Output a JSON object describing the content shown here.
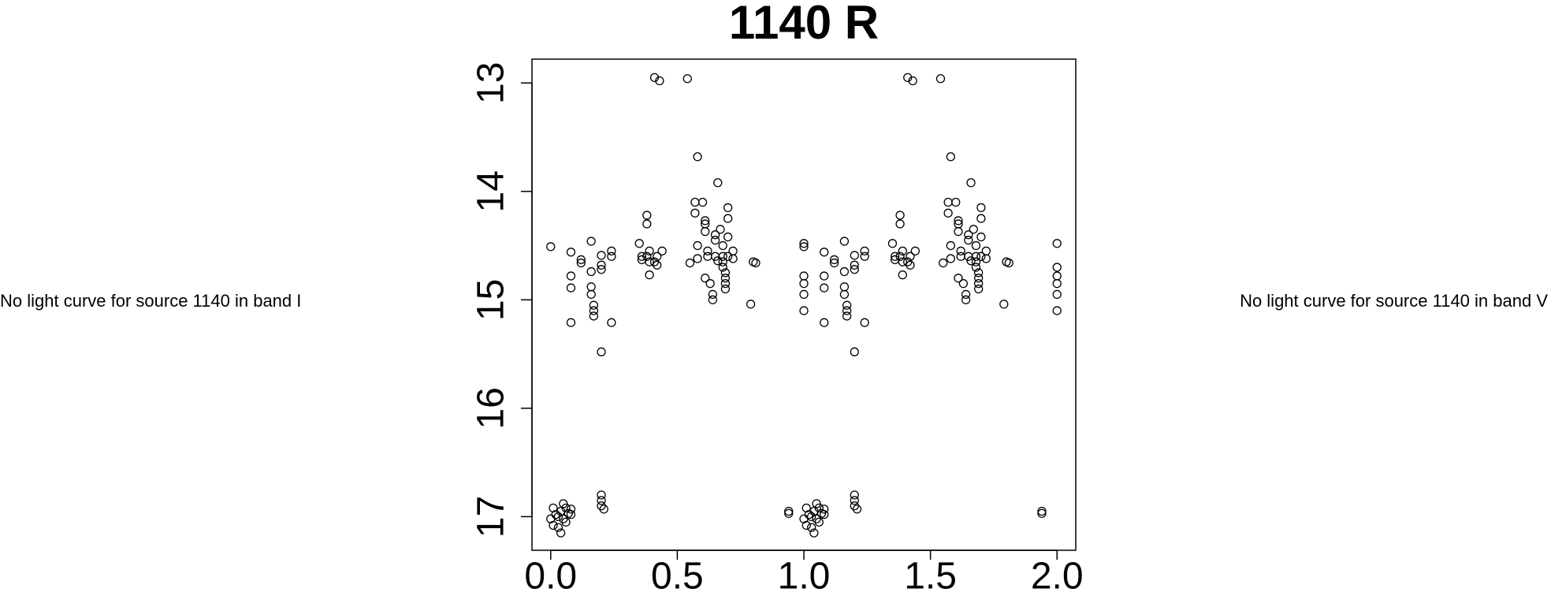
{
  "left_note": "No light curve for source 1140 in band I",
  "right_note": "No light curve for source 1140 in band V",
  "chart_data": {
    "type": "scatter",
    "title": "1140 R",
    "color": "#000000",
    "marker": "open-circle",
    "xlim": [
      -0.074,
      2.074
    ],
    "ylim": [
      12.78,
      17.31
    ],
    "y_reversed": true,
    "xticks": [
      {
        "value": 0,
        "label": "0.0"
      },
      0.5,
      {
        "value": 1,
        "label": "1.0"
      },
      1.5,
      {
        "value": 2,
        "label": "2.0"
      }
    ],
    "yticks": [
      13,
      14,
      15,
      16,
      17
    ],
    "x": [
      0.0,
      0.0,
      0.01,
      0.01,
      0.02,
      0.03,
      0.03,
      0.04,
      0.04,
      0.05,
      0.05,
      0.06,
      0.06,
      0.07,
      0.08,
      0.08,
      0.08,
      0.08,
      0.08,
      0.08,
      0.12,
      0.12,
      0.16,
      0.16,
      0.16,
      0.16,
      0.17,
      0.17,
      0.17,
      0.2,
      0.2,
      0.2,
      0.2,
      0.2,
      0.2,
      0.2,
      0.21,
      0.24,
      0.24,
      0.24,
      0.35,
      0.36,
      0.36,
      0.38,
      0.38,
      0.38,
      0.39,
      0.39,
      0.39,
      0.41,
      0.42,
      0.42,
      0.41,
      0.43,
      0.44,
      0.54,
      0.55,
      0.58,
      0.57,
      0.57,
      0.58,
      0.58,
      0.6,
      0.61,
      0.61,
      0.61,
      0.62,
      0.62,
      0.61,
      0.63,
      0.64,
      0.64,
      0.65,
      0.65,
      0.65,
      0.66,
      0.66,
      0.67,
      0.68,
      0.68,
      0.68,
      0.68,
      0.69,
      0.69,
      0.69,
      0.69,
      0.7,
      0.7,
      0.7,
      0.7,
      0.72,
      0.72,
      0.79,
      0.8,
      0.81,
      0.94,
      0.94,
      1.0,
      1.0,
      1.01,
      1.01,
      1.02,
      1.03,
      1.03,
      1.04,
      1.04,
      1.05,
      1.05,
      1.06,
      1.06,
      1.07,
      1.08,
      1.08,
      1.08,
      1.08,
      1.08,
      1.08,
      1.12,
      1.12,
      1.16,
      1.16,
      1.16,
      1.16,
      1.17,
      1.17,
      1.17,
      1.2,
      1.2,
      1.2,
      1.2,
      1.2,
      1.2,
      1.2,
      1.21,
      1.24,
      1.24,
      1.24,
      1.35,
      1.36,
      1.36,
      1.38,
      1.38,
      1.38,
      1.39,
      1.39,
      1.39,
      1.41,
      1.42,
      1.42,
      1.41,
      1.43,
      1.44,
      1.54,
      1.55,
      1.58,
      1.57,
      1.57,
      1.58,
      1.58,
      1.6,
      1.61,
      1.61,
      1.61,
      1.62,
      1.62,
      1.61,
      1.63,
      1.64,
      1.64,
      1.65,
      1.65,
      1.65,
      1.66,
      1.66,
      1.67,
      1.68,
      1.68,
      1.68,
      1.68,
      1.69,
      1.69,
      1.69,
      1.69,
      1.7,
      1.7,
      1.7,
      1.7,
      1.72,
      1.72,
      1.79,
      1.8,
      1.81,
      1.94,
      1.94,
      1.0,
      1.0,
      1.0,
      1.0,
      1.0,
      2.0,
      2.0,
      2.0,
      2.0,
      2.0,
      2.0
    ],
    "y": [
      14.51,
      17.02,
      16.92,
      17.08,
      16.98,
      17.1,
      17.0,
      17.15,
      16.95,
      17.02,
      16.88,
      16.92,
      17.05,
      16.97,
      16.93,
      16.98,
      14.56,
      14.78,
      14.89,
      15.21,
      14.66,
      14.63,
      14.46,
      14.74,
      14.88,
      14.95,
      15.05,
      15.1,
      15.15,
      14.59,
      14.68,
      14.72,
      15.48,
      16.8,
      16.85,
      16.9,
      16.93,
      14.55,
      14.6,
      15.21,
      14.48,
      14.6,
      14.63,
      14.22,
      14.3,
      14.6,
      14.65,
      14.77,
      14.55,
      14.65,
      14.6,
      14.68,
      12.95,
      12.98,
      14.55,
      12.96,
      14.66,
      13.68,
      14.1,
      14.2,
      14.5,
      14.62,
      14.1,
      14.27,
      14.3,
      14.37,
      14.55,
      14.6,
      14.8,
      14.85,
      14.95,
      15.0,
      14.4,
      14.45,
      14.6,
      13.92,
      14.64,
      14.35,
      14.5,
      14.6,
      14.65,
      14.7,
      14.75,
      14.8,
      14.85,
      14.9,
      14.15,
      14.25,
      14.42,
      14.6,
      14.55,
      14.62,
      15.04,
      14.65,
      14.66,
      16.95,
      16.97,
      14.51,
      17.02,
      16.92,
      17.08,
      16.98,
      17.1,
      17.0,
      17.15,
      16.95,
      17.02,
      16.88,
      16.92,
      17.05,
      16.97,
      16.93,
      16.98,
      14.56,
      14.78,
      14.89,
      15.21,
      14.66,
      14.63,
      14.46,
      14.74,
      14.88,
      14.95,
      15.05,
      15.1,
      15.15,
      14.59,
      14.68,
      14.72,
      15.48,
      16.8,
      16.85,
      16.9,
      16.93,
      14.55,
      14.6,
      15.21,
      14.48,
      14.6,
      14.63,
      14.22,
      14.3,
      14.6,
      14.65,
      14.77,
      14.55,
      14.65,
      14.6,
      14.68,
      12.95,
      12.98,
      14.55,
      12.96,
      14.66,
      13.68,
      14.1,
      14.2,
      14.5,
      14.62,
      14.1,
      14.27,
      14.3,
      14.37,
      14.55,
      14.6,
      14.8,
      14.85,
      14.95,
      15.0,
      14.4,
      14.45,
      14.6,
      13.92,
      14.64,
      14.35,
      14.5,
      14.6,
      14.65,
      14.7,
      14.75,
      14.8,
      14.85,
      14.9,
      14.15,
      14.25,
      14.42,
      14.6,
      14.55,
      14.62,
      15.04,
      14.65,
      14.66,
      16.95,
      16.97,
      14.48,
      14.78,
      14.85,
      14.95,
      15.1,
      14.48,
      14.7,
      14.78,
      14.85,
      14.95,
      15.1
    ]
  }
}
